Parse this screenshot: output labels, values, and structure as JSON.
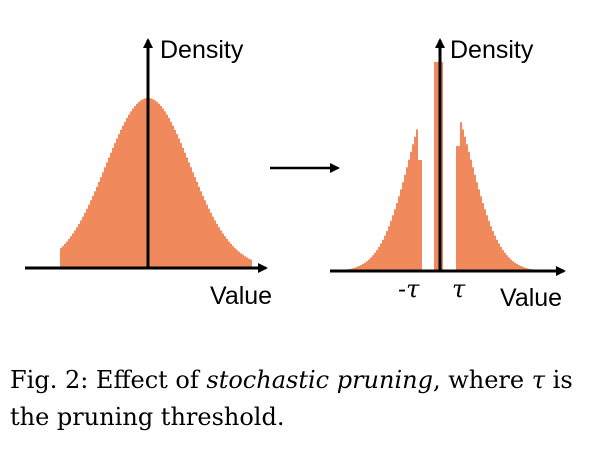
{
  "colors": {
    "fill": "#F08A5D",
    "axis": "#000000"
  },
  "left_panel": {
    "y_label": "Density",
    "x_label": "Value",
    "shape": "bell-curve"
  },
  "transform_arrow": "right-arrow",
  "right_panel": {
    "y_label": "Density",
    "x_label": "Value",
    "neg_threshold_label": "-τ",
    "pos_threshold_label": "τ",
    "shape": "pruned-distribution"
  },
  "caption": {
    "prefix": "Fig. 2: Effect of ",
    "emphasis": "stochastic pruning",
    "middle": ", where ",
    "symbol": "τ",
    "suffix": " is the pruning threshold."
  }
}
